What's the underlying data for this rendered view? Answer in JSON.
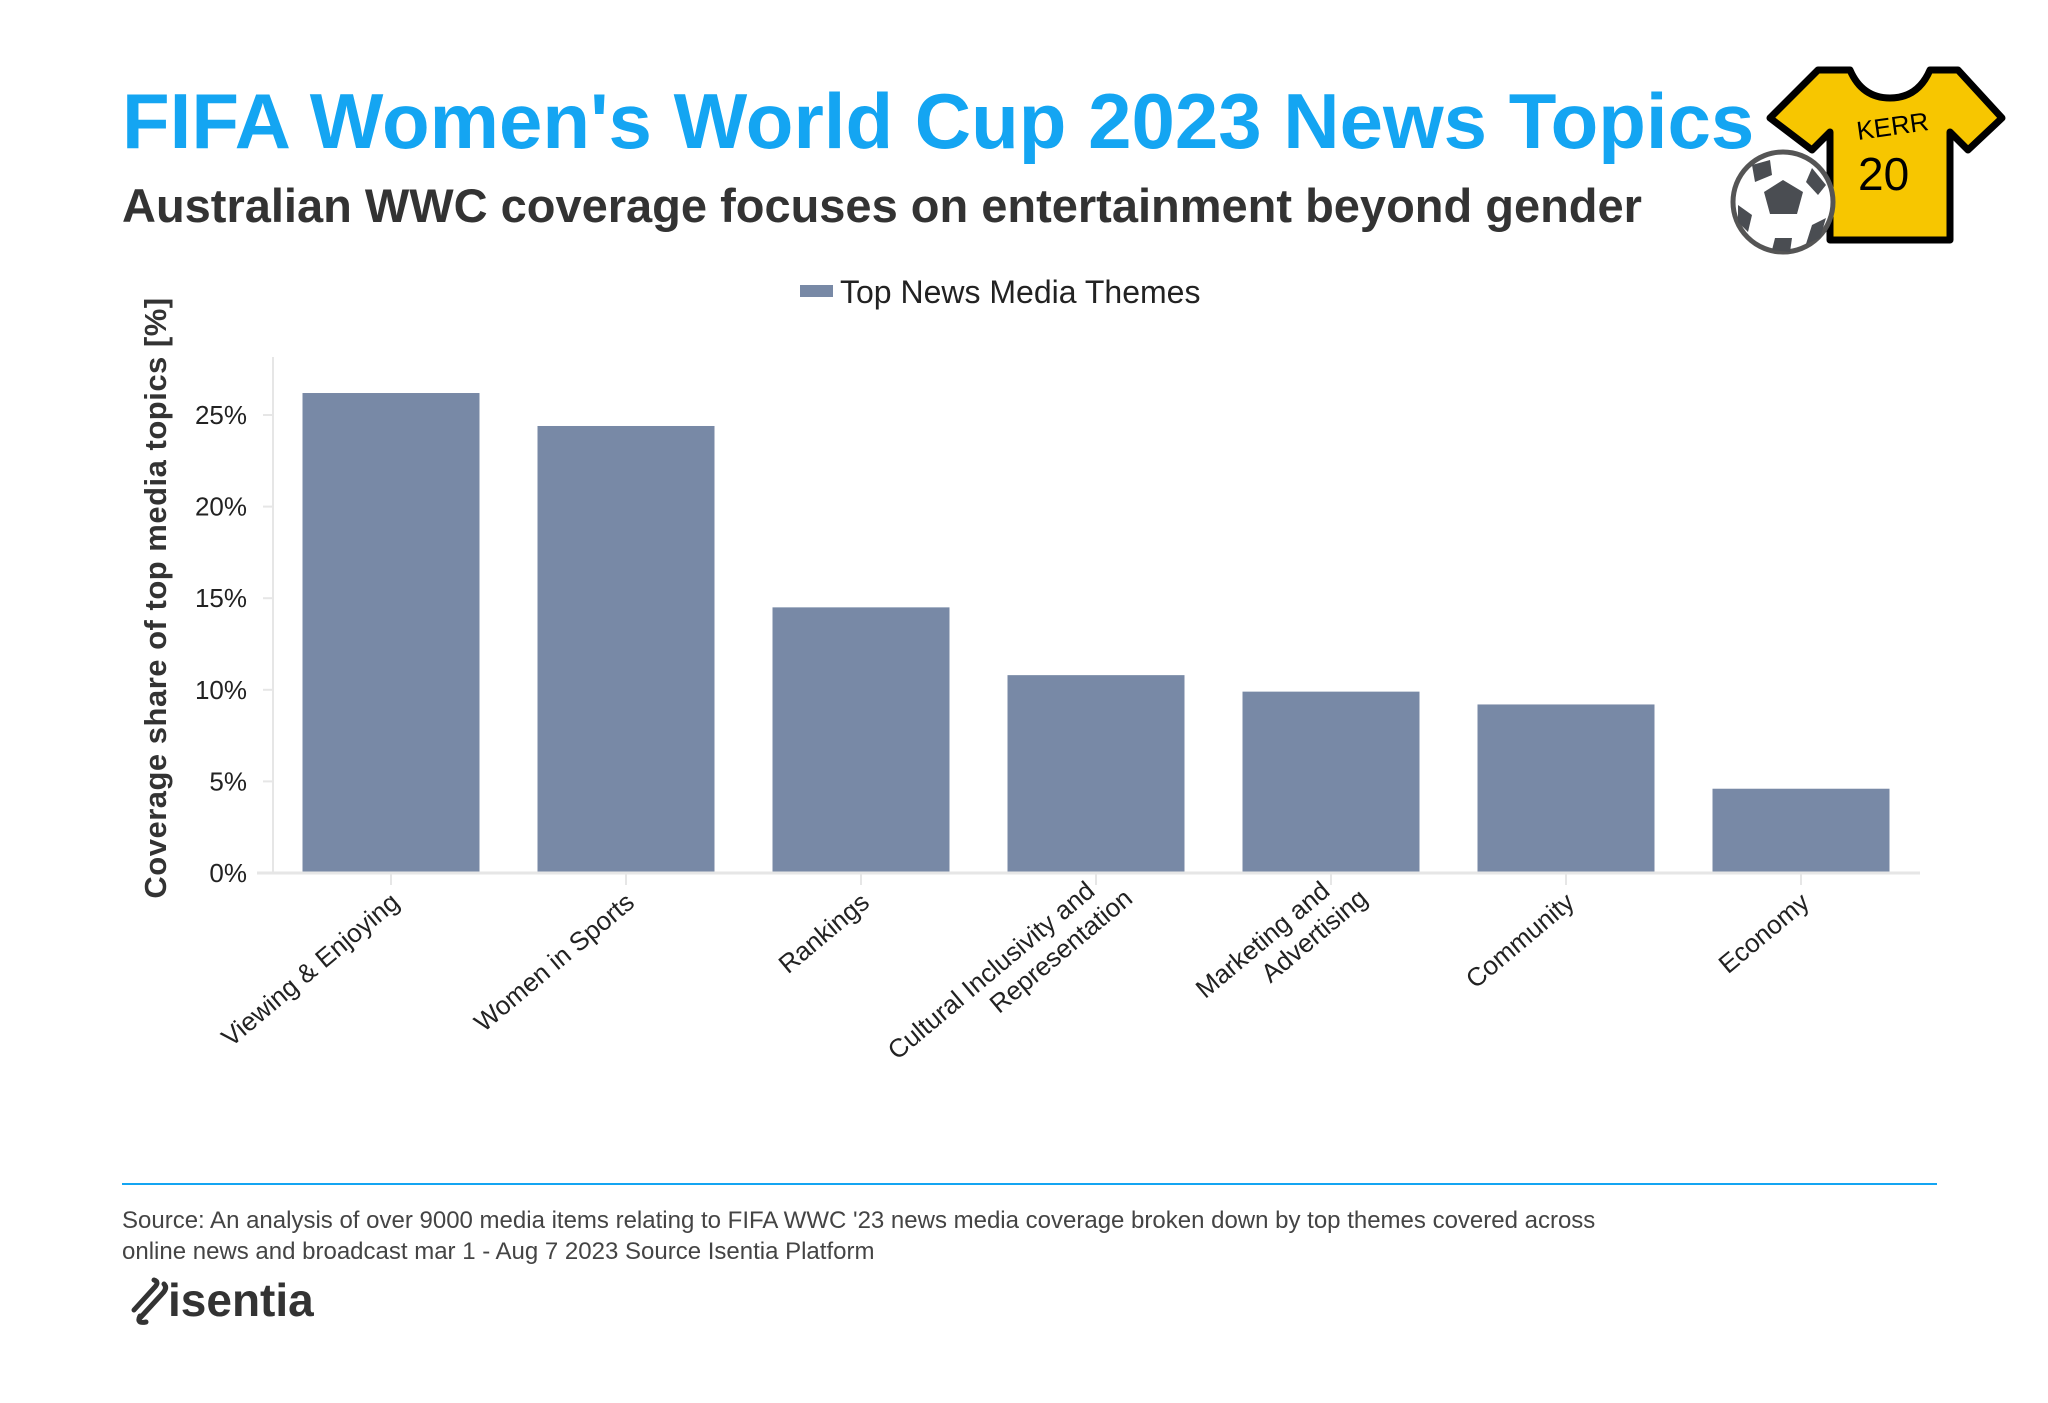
{
  "header": {
    "title": "FIFA Women's World Cup 2023 News Topics",
    "subtitle": "Australian WWC coverage focuses on entertainment beyond gender",
    "title_color": "#14a5f2",
    "jersey": {
      "name": "KERR",
      "number": "20",
      "color": "#f7c600"
    }
  },
  "chart_data": {
    "type": "bar",
    "title": "",
    "legend": {
      "label": "Top News Media Themes",
      "placement": "top"
    },
    "ylabel": "Coverage share of top media topics  [%]",
    "xlabel": "",
    "ylim": [
      0,
      28
    ],
    "yticks": [
      0,
      5,
      10,
      15,
      20,
      25
    ],
    "ytick_labels": [
      "0%",
      "5%",
      "10%",
      "15%",
      "20%",
      "25%"
    ],
    "grid": false,
    "bar_color": "#7889a6",
    "categories": [
      [
        "Viewing & Enjoying"
      ],
      [
        "Women in Sports"
      ],
      [
        "Rankings"
      ],
      [
        "Cultural Inclusivity and",
        "Representation"
      ],
      [
        "Marketing and",
        "Advertising"
      ],
      [
        "Community"
      ],
      [
        "Economy"
      ]
    ],
    "values": [
      26.2,
      24.4,
      14.5,
      10.8,
      9.9,
      9.2,
      4.6
    ]
  },
  "footer": {
    "rule_color": "#14a5f2",
    "source_lines": [
      "Source: An analysis of over 9000 media items relating to FIFA WWC '23 news media coverage broken down by top themes covered across",
      "online news and broadcast mar 1 - Aug 7 2023 Source Isentia Platform"
    ],
    "logo": "isentia"
  }
}
